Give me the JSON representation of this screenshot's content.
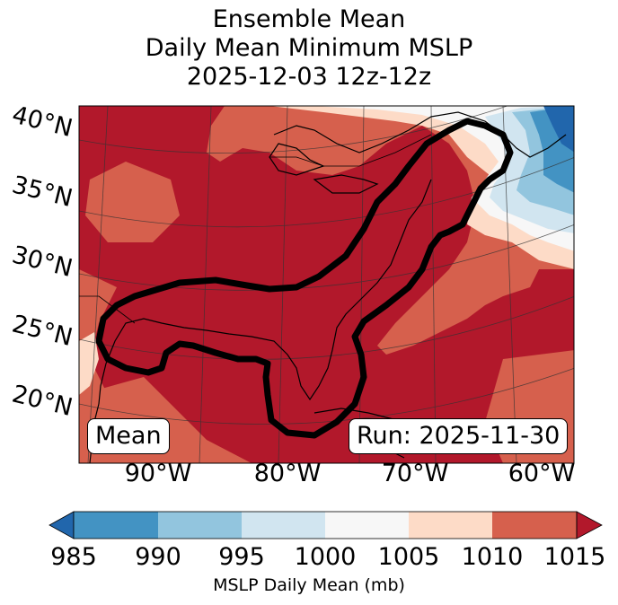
{
  "title": {
    "line1": "Ensemble Mean",
    "line2": "Daily Mean Minimum MSLP",
    "line3": "2025-12-03 12z-12z"
  },
  "lat_labels": [
    "40°N",
    "35°N",
    "30°N",
    "25°N",
    "20°N"
  ],
  "lon_labels": [
    "90°W",
    "80°W",
    "70°W",
    "60°W"
  ],
  "mean_label": "Mean",
  "run_label": "Run: 2025-11-30",
  "colorbar": {
    "ticks": [
      "985",
      "990",
      "995",
      "1000",
      "1005",
      "1010",
      "1015"
    ],
    "label": "MSLP Daily Mean (mb)",
    "colors": [
      "#2166ac",
      "#4393c3",
      "#92c5de",
      "#d1e5f0",
      "#f7f7f7",
      "#fddbc7",
      "#d6604d",
      "#b2182b"
    ]
  },
  "colors": {
    "level_1015_plus": "#b2182b",
    "level_1010": "#d6604d",
    "level_1005": "#fddbc7",
    "level_1000": "#f7f7f7",
    "level_995": "#d1e5f0",
    "level_990": "#92c5de",
    "level_985": "#4393c3",
    "contour": "#000000"
  }
}
